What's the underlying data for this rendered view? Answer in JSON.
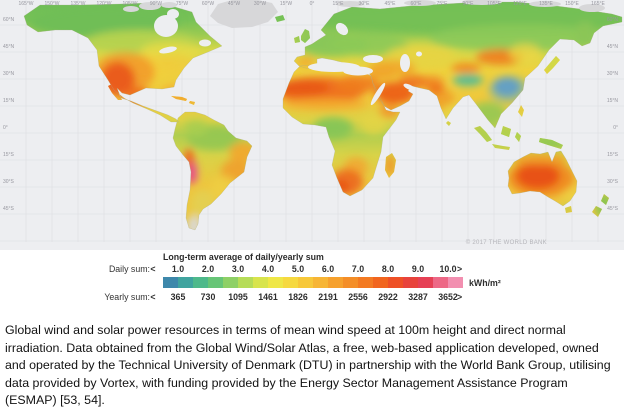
{
  "map": {
    "lon_labels": [
      "165°W",
      "150°W",
      "135°W",
      "120°W",
      "105°W",
      "90°W",
      "75°W",
      "60°W",
      "45°W",
      "30°W",
      "15°W",
      "0°",
      "15°E",
      "30°E",
      "45°E",
      "60°E",
      "75°E",
      "90°E",
      "105°E",
      "120°E",
      "135°E",
      "150°E",
      "165°E"
    ],
    "lat_labels": [
      "60°N",
      "45°N",
      "30°N",
      "15°N",
      "0°",
      "15°S",
      "30°S",
      "45°S"
    ],
    "copyright": "© 2017 THE WORLD BANK"
  },
  "legend": {
    "title": "Long-term average of daily/yearly sum",
    "daily_label": "Daily sum:",
    "yearly_label": "Yearly sum:",
    "less_than": "<",
    "greater_than": ">",
    "unit": "kWh/m²",
    "daily_values": [
      "1.0",
      "2.0",
      "3.0",
      "4.0",
      "5.0",
      "6.0",
      "7.0",
      "8.0",
      "9.0",
      "10.0"
    ],
    "yearly_values": [
      "365",
      "730",
      "1095",
      "1461",
      "1826",
      "2191",
      "2556",
      "2922",
      "3287",
      "3652"
    ],
    "colors": [
      "#3e88ab",
      "#40a49f",
      "#4eb98b",
      "#67c577",
      "#8ed066",
      "#b6dc58",
      "#d8e44d",
      "#efe747",
      "#f6d940",
      "#f7c83a",
      "#f7b535",
      "#f6a12e",
      "#f48e28",
      "#f37a22",
      "#f1651e",
      "#ee5026",
      "#e8433c",
      "#e64055",
      "#ed6886",
      "#f28fb0"
    ]
  },
  "caption": "Global wind and solar power resources in terms of mean wind speed at 100m height and direct normal irradiation. Data obtained from the Global Wind/Solar Atlas, a free, web-based application developed, owned and operated by the Technical University of Denmark (DTU) in partnership with the World Bank Group, utilising data provided by Vortex, with funding provided by the Energy Sector Management Assistance Program (ESMAP) [53, 54]."
}
